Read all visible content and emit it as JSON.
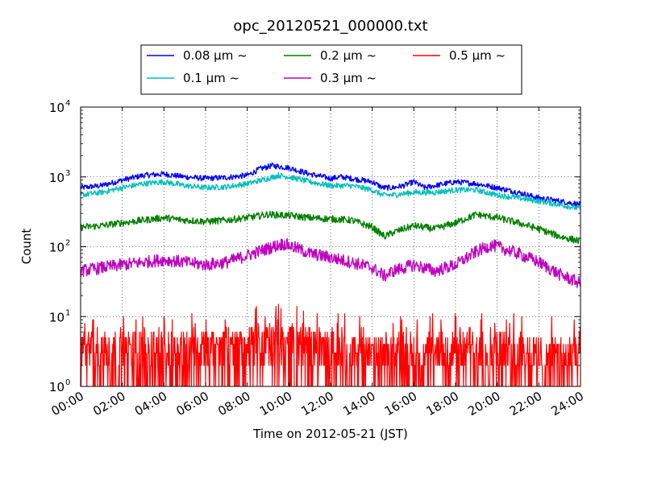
{
  "chart_data": {
    "type": "line",
    "title": "opc_20120521_000000.txt",
    "xlabel": "Time on 2012-05-21 (JST)",
    "ylabel": "Count",
    "x_unit": "hours",
    "xlim": [
      0,
      24
    ],
    "ylim": [
      1,
      10000
    ],
    "yscale": "log",
    "grid": true,
    "legend_position": "top-center",
    "x_ticks": [
      "00:00",
      "02:00",
      "04:00",
      "06:00",
      "08:00",
      "10:00",
      "12:00",
      "14:00",
      "16:00",
      "18:00",
      "20:00",
      "22:00",
      "24:00"
    ],
    "y_ticks": [
      {
        "base": "10",
        "exp": "0"
      },
      {
        "base": "10",
        "exp": "1"
      },
      {
        "base": "10",
        "exp": "2"
      },
      {
        "base": "10",
        "exp": "3"
      },
      {
        "base": "10",
        "exp": "4"
      }
    ],
    "series": [
      {
        "name": "0.08 μm ~",
        "color": "#0000ff",
        "points": [
          [
            0,
            700
          ],
          [
            1,
            750
          ],
          [
            2,
            900
          ],
          [
            3,
            1050
          ],
          [
            4,
            1100
          ],
          [
            5,
            1000
          ],
          [
            6,
            950
          ],
          [
            7,
            980
          ],
          [
            8,
            1050
          ],
          [
            8.6,
            1300
          ],
          [
            9.2,
            1450
          ],
          [
            10,
            1350
          ],
          [
            11,
            1100
          ],
          [
            12,
            950
          ],
          [
            12.5,
            1000
          ],
          [
            13,
            950
          ],
          [
            14,
            850
          ],
          [
            14.5,
            700
          ],
          [
            15,
            700
          ],
          [
            15.5,
            750
          ],
          [
            16,
            850
          ],
          [
            16.5,
            700
          ],
          [
            17,
            750
          ],
          [
            18,
            850
          ],
          [
            19,
            800
          ],
          [
            20,
            700
          ],
          [
            21,
            600
          ],
          [
            22,
            500
          ],
          [
            23,
            450
          ],
          [
            24,
            400
          ]
        ]
      },
      {
        "name": "0.1 μm ~",
        "color": "#00bfbf",
        "points": [
          [
            0,
            550
          ],
          [
            1,
            600
          ],
          [
            2,
            700
          ],
          [
            3,
            800
          ],
          [
            4,
            850
          ],
          [
            5,
            750
          ],
          [
            6,
            700
          ],
          [
            7,
            720
          ],
          [
            8,
            800
          ],
          [
            9,
            950
          ],
          [
            9.5,
            1050
          ],
          [
            10,
            1000
          ],
          [
            11,
            850
          ],
          [
            12,
            750
          ],
          [
            13,
            750
          ],
          [
            14,
            650
          ],
          [
            14.5,
            550
          ],
          [
            15,
            550
          ],
          [
            16,
            600
          ],
          [
            17,
            600
          ],
          [
            18,
            650
          ],
          [
            19,
            650
          ],
          [
            20,
            550
          ],
          [
            21,
            500
          ],
          [
            22,
            450
          ],
          [
            23,
            400
          ],
          [
            24,
            350
          ]
        ]
      },
      {
        "name": "0.2 μm ~",
        "color": "#008000",
        "points": [
          [
            0,
            190
          ],
          [
            1,
            200
          ],
          [
            2,
            220
          ],
          [
            3,
            240
          ],
          [
            4,
            260
          ],
          [
            5,
            240
          ],
          [
            6,
            230
          ],
          [
            7,
            240
          ],
          [
            8,
            260
          ],
          [
            9,
            290
          ],
          [
            10,
            280
          ],
          [
            11,
            260
          ],
          [
            12,
            250
          ],
          [
            13,
            240
          ],
          [
            14,
            190
          ],
          [
            14.6,
            140
          ],
          [
            15,
            160
          ],
          [
            16,
            200
          ],
          [
            17,
            180
          ],
          [
            18,
            220
          ],
          [
            19,
            290
          ],
          [
            20,
            260
          ],
          [
            21,
            220
          ],
          [
            22,
            180
          ],
          [
            23,
            140
          ],
          [
            24,
            120
          ]
        ]
      },
      {
        "name": "0.3 μm ~",
        "color": "#bf00bf",
        "points": [
          [
            0,
            45
          ],
          [
            1,
            50
          ],
          [
            2,
            55
          ],
          [
            3,
            60
          ],
          [
            4,
            65
          ],
          [
            5,
            60
          ],
          [
            6,
            55
          ],
          [
            7,
            60
          ],
          [
            8,
            75
          ],
          [
            9,
            95
          ],
          [
            9.7,
            110
          ],
          [
            10,
            105
          ],
          [
            11,
            80
          ],
          [
            12,
            70
          ],
          [
            13,
            60
          ],
          [
            14,
            50
          ],
          [
            14.6,
            38
          ],
          [
            15,
            45
          ],
          [
            16,
            55
          ],
          [
            17,
            45
          ],
          [
            18,
            55
          ],
          [
            19,
            85
          ],
          [
            19.7,
            105
          ],
          [
            20,
            100
          ],
          [
            21,
            80
          ],
          [
            22,
            60
          ],
          [
            23,
            40
          ],
          [
            24,
            30
          ]
        ]
      },
      {
        "name": "0.5 μm ~",
        "color": "#ff0000",
        "points": [
          [
            0,
            3
          ],
          [
            2,
            3
          ],
          [
            4,
            3
          ],
          [
            6,
            3
          ],
          [
            8,
            3.5
          ],
          [
            9,
            4
          ],
          [
            10,
            4
          ],
          [
            11,
            3.5
          ],
          [
            12,
            3
          ],
          [
            14,
            2.5
          ],
          [
            16,
            2.5
          ],
          [
            18,
            3
          ],
          [
            19,
            3.5
          ],
          [
            20,
            3
          ],
          [
            22,
            2.5
          ],
          [
            24,
            2.5
          ]
        ]
      }
    ]
  }
}
